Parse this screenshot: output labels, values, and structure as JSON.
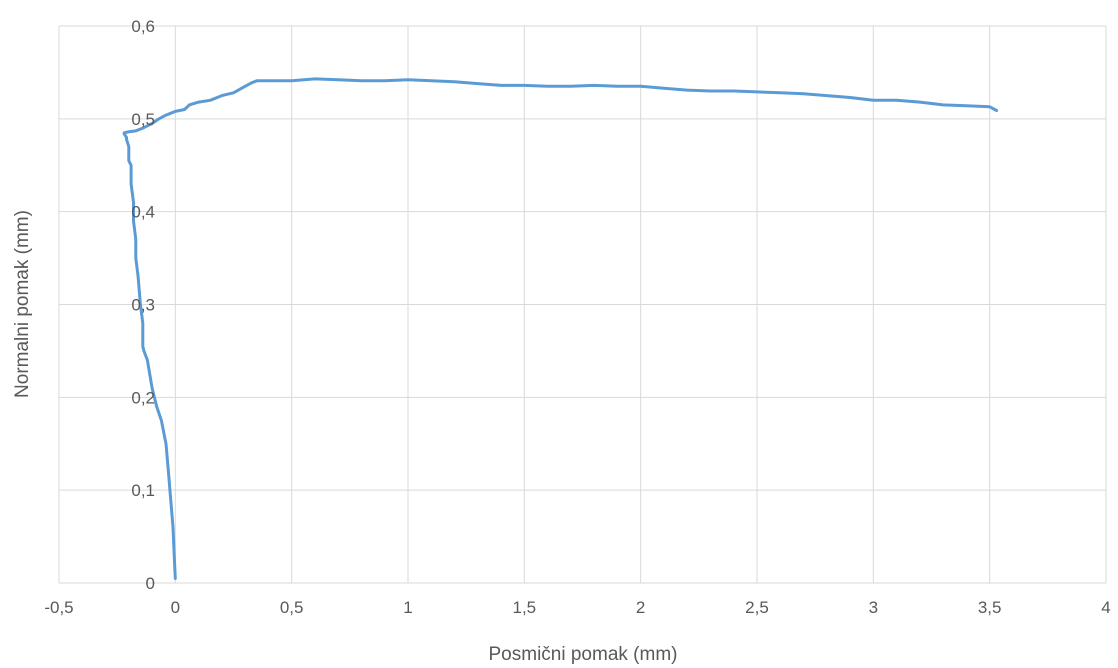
{
  "chart_data": {
    "type": "scatter",
    "title": "",
    "xlabel": "Posmični pomak (mm)",
    "ylabel": "Normalni pomak (mm)",
    "xlim": [
      -0.5,
      4
    ],
    "ylim": [
      0,
      0.6
    ],
    "x_ticks": [
      -0.5,
      0,
      0.5,
      1,
      1.5,
      2,
      2.5,
      3,
      3.5,
      4
    ],
    "y_ticks": [
      0,
      0.1,
      0.2,
      0.3,
      0.4,
      0.5,
      0.6
    ],
    "x_tick_labels": [
      "-0,5",
      "0",
      "0,5",
      "1",
      "1,5",
      "2",
      "2,5",
      "3",
      "3,5",
      "4"
    ],
    "y_tick_labels": [
      "0",
      "0,1",
      "0,2",
      "0,3",
      "0,4",
      "0,5",
      "0,6"
    ],
    "grid": true,
    "legend": "none",
    "series": [
      {
        "color": "#5b9bd5",
        "x": [
          0.0,
          -0.005,
          -0.01,
          -0.02,
          -0.03,
          -0.04,
          -0.06,
          -0.08,
          -0.1,
          -0.12,
          -0.135,
          -0.14,
          -0.14,
          -0.15,
          -0.16,
          -0.17,
          -0.17,
          -0.18,
          -0.18,
          -0.19,
          -0.19,
          -0.2,
          -0.2,
          -0.21,
          -0.21,
          -0.22,
          -0.22,
          -0.2,
          -0.17,
          -0.14,
          -0.1,
          -0.07,
          -0.04,
          -0.02,
          0.0,
          0.04,
          0.06,
          0.1,
          0.15,
          0.2,
          0.25,
          0.3,
          0.33,
          0.35,
          0.4,
          0.5,
          0.6,
          0.7,
          0.8,
          0.9,
          1.0,
          1.1,
          1.2,
          1.3,
          1.4,
          1.5,
          1.6,
          1.7,
          1.8,
          1.9,
          2.0,
          2.1,
          2.2,
          2.3,
          2.4,
          2.5,
          2.6,
          2.7,
          2.8,
          2.9,
          3.0,
          3.1,
          3.2,
          3.3,
          3.4,
          3.5,
          3.53
        ],
        "y": [
          0.005,
          0.03,
          0.06,
          0.09,
          0.12,
          0.15,
          0.175,
          0.19,
          0.21,
          0.24,
          0.25,
          0.255,
          0.28,
          0.3,
          0.33,
          0.35,
          0.37,
          0.39,
          0.41,
          0.43,
          0.45,
          0.455,
          0.47,
          0.478,
          0.48,
          0.484,
          0.485,
          0.486,
          0.487,
          0.49,
          0.495,
          0.5,
          0.504,
          0.506,
          0.508,
          0.51,
          0.515,
          0.518,
          0.52,
          0.525,
          0.528,
          0.535,
          0.539,
          0.541,
          0.541,
          0.541,
          0.543,
          0.542,
          0.541,
          0.541,
          0.542,
          0.541,
          0.54,
          0.538,
          0.536,
          0.536,
          0.535,
          0.535,
          0.536,
          0.535,
          0.535,
          0.533,
          0.531,
          0.53,
          0.53,
          0.529,
          0.528,
          0.527,
          0.525,
          0.523,
          0.52,
          0.52,
          0.518,
          0.515,
          0.514,
          0.513,
          0.509
        ]
      }
    ]
  }
}
